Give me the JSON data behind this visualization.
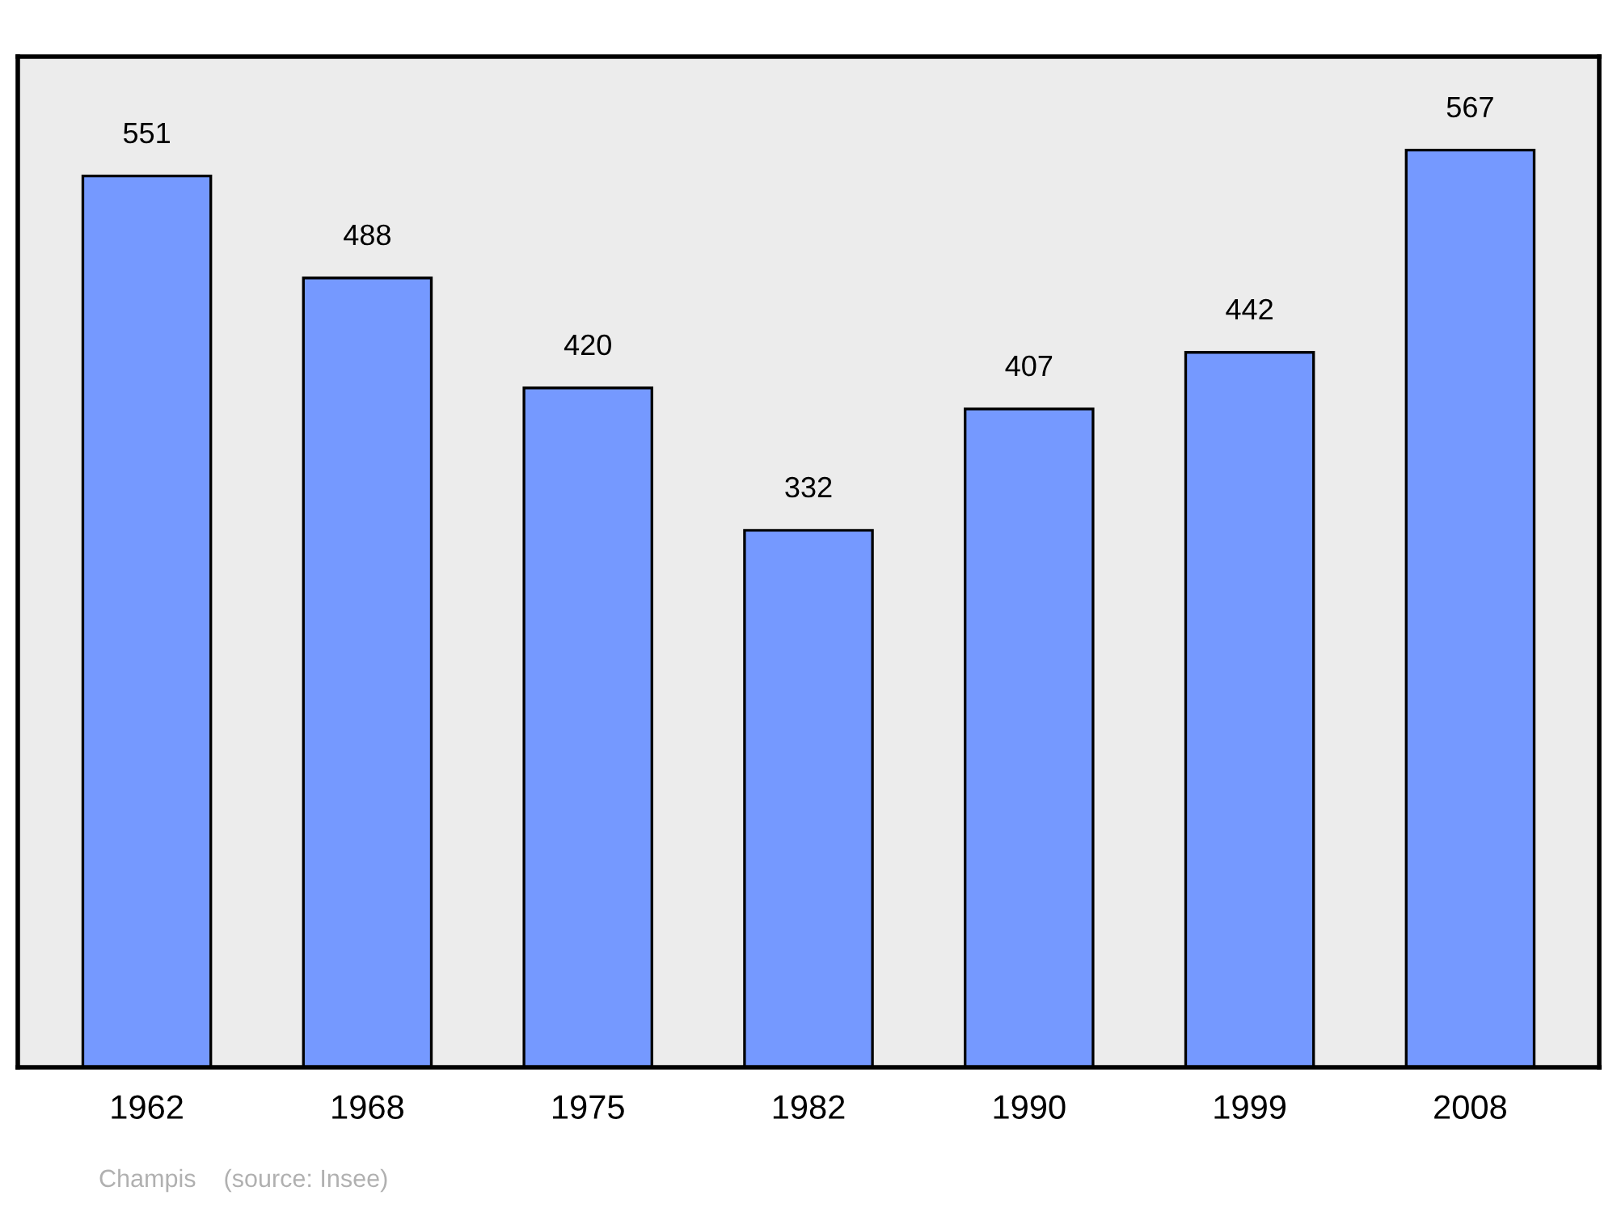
{
  "chart_data": {
    "type": "bar",
    "categories": [
      "1962",
      "1968",
      "1975",
      "1982",
      "1990",
      "1999",
      "2008"
    ],
    "values": [
      551,
      488,
      420,
      332,
      407,
      442,
      567
    ],
    "color": "#7599ff",
    "data_labels": true,
    "grid": false,
    "legend": false,
    "annotations": [
      "Champis    (source: Insee)"
    ]
  }
}
